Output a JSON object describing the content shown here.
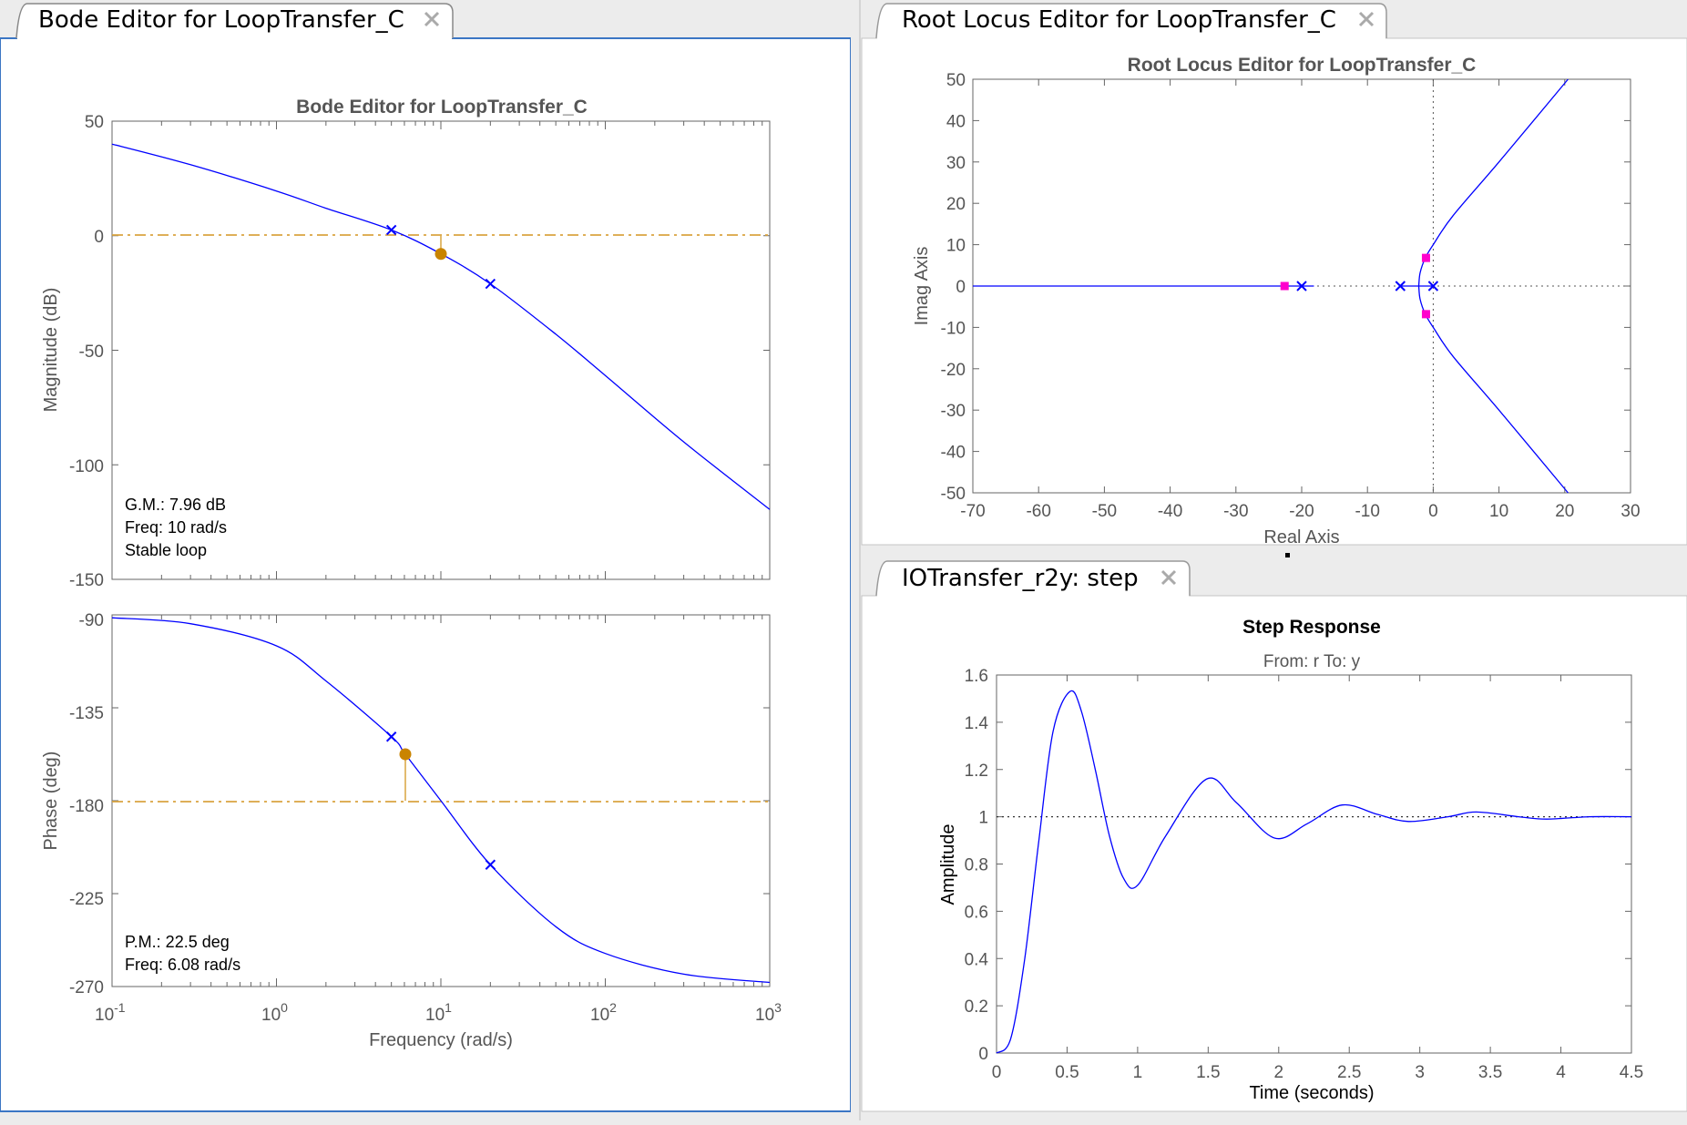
{
  "tabs": {
    "bode": "Bode Editor for LoopTransfer_C",
    "rlocus": "Root Locus Editor for LoopTransfer_C",
    "step": "IOTransfer_r2y: step"
  },
  "bode": {
    "title": "Bode Editor for LoopTransfer_C",
    "mag_ylabel": "Magnitude (dB)",
    "phase_ylabel": "Phase (deg)",
    "xlabel": "Frequency (rad/s)",
    "mag_yticks": [
      "50",
      "0",
      "-50",
      "-100",
      "-150"
    ],
    "phase_yticks": [
      "-90",
      "-135",
      "-180",
      "-225",
      "-270"
    ],
    "xticks": [
      {
        "base": "10",
        "exp": "-1"
      },
      {
        "base": "10",
        "exp": "0"
      },
      {
        "base": "10",
        "exp": "1"
      },
      {
        "base": "10",
        "exp": "2"
      },
      {
        "base": "10",
        "exp": "3"
      }
    ],
    "gm": {
      "line1": "G.M.: 7.96 dB",
      "line2": "Freq: 10 rad/s",
      "line3": "Stable loop"
    },
    "pm": {
      "line1": "P.M.: 22.5 deg",
      "line2": "Freq: 6.08 rad/s"
    }
  },
  "rlocus": {
    "title": "Root Locus Editor for LoopTransfer_C",
    "xlabel": "Real Axis",
    "ylabel": "Imag Axis",
    "xticks": [
      "-70",
      "-60",
      "-50",
      "-40",
      "-30",
      "-20",
      "-10",
      "0",
      "10",
      "20",
      "30"
    ],
    "yticks": [
      "50",
      "40",
      "30",
      "20",
      "10",
      "0",
      "-10",
      "-20",
      "-30",
      "-40",
      "-50"
    ]
  },
  "step": {
    "title": "Step Response",
    "subtitle": "From: r  To: y",
    "xlabel": "Time (seconds)",
    "ylabel": "Amplitude",
    "xticks": [
      "0",
      "0.5",
      "1",
      "1.5",
      "2",
      "2.5",
      "3",
      "3.5",
      "4",
      "4.5"
    ],
    "yticks": [
      "1.6",
      "1.4",
      "1.2",
      "1",
      "0.8",
      "0.6",
      "0.4",
      "0.2",
      "0"
    ]
  },
  "colors": {
    "curve": "#0000ff",
    "margin": "#d9a440",
    "marker_orange": "#c98400",
    "pole_marker": "#ff00cc",
    "tab_border": "#3b76c4"
  },
  "chart_data": [
    {
      "type": "line",
      "title": "Bode Editor for LoopTransfer_C",
      "xlabel": "Frequency (rad/s)",
      "ylabel": "Magnitude (dB)",
      "xscale": "log",
      "xlim": [
        0.1,
        1000
      ],
      "ylim": [
        -150,
        50
      ],
      "x": [
        0.1,
        0.3,
        1,
        2,
        5,
        10,
        20,
        50,
        100,
        300,
        1000
      ],
      "y": [
        40,
        31,
        19.5,
        12,
        2.5,
        -7.9,
        -21,
        -43,
        -61,
        -90,
        -119.5
      ],
      "compensator_poles": [
        5,
        20
      ],
      "gain_margin_db": 7.96,
      "gain_margin_freq": 10
    },
    {
      "type": "line",
      "xlabel": "Frequency (rad/s)",
      "ylabel": "Phase (deg)",
      "xscale": "log",
      "xlim": [
        0.1,
        1000
      ],
      "ylim": [
        -270,
        -90
      ],
      "x": [
        0.1,
        0.3,
        1,
        2,
        5,
        6.08,
        10,
        20,
        50,
        100,
        300,
        1000
      ],
      "y": [
        -91.4,
        -94.3,
        -105,
        -122,
        -149,
        -157.5,
        -180,
        -211,
        -241,
        -254,
        -264,
        -268
      ],
      "phase_margin_deg": 22.5,
      "phase_margin_freq": 6.08
    },
    {
      "type": "line",
      "title": "Root Locus Editor for LoopTransfer_C",
      "xlabel": "Real Axis",
      "ylabel": "Imag Axis",
      "xlim": [
        -70,
        30
      ],
      "ylim": [
        -50,
        50
      ],
      "open_loop_poles": [
        0,
        -5,
        -20
      ],
      "closed_loop_poles": [
        [
          -1.1,
          6.8
        ],
        [
          -1.1,
          -6.8
        ],
        [
          -22.6,
          0
        ]
      ],
      "branches": [
        {
          "real": [
            -20,
            -22.6,
            -70
          ],
          "imag": [
            0,
            0,
            0
          ]
        },
        {
          "real": [
            -2.2,
            -2.0,
            -1.2,
            0,
            3,
            10,
            20.5
          ],
          "imag": [
            0,
            3.2,
            6.8,
            10,
            17,
            30,
            50
          ]
        },
        {
          "real": [
            -2.2,
            -2.0,
            -1.2,
            0,
            3,
            10,
            20.5
          ],
          "imag": [
            0,
            -3.2,
            -6.8,
            -10,
            -17,
            -30,
            -50
          ]
        }
      ]
    },
    {
      "type": "line",
      "title": "Step Response",
      "subtitle": "From: r  To: y",
      "xlabel": "Time (seconds)",
      "ylabel": "Amplitude",
      "xlim": [
        0,
        4.5
      ],
      "ylim": [
        0,
        1.6
      ],
      "x": [
        0,
        0.1,
        0.2,
        0.3,
        0.4,
        0.52,
        0.6,
        0.7,
        0.8,
        0.9,
        1.0,
        1.2,
        1.49,
        1.7,
        1.97,
        2.2,
        2.45,
        2.7,
        2.92,
        3.2,
        3.4,
        3.7,
        3.9,
        4.2,
        4.5
      ],
      "y": [
        0,
        0.06,
        0.4,
        0.9,
        1.36,
        1.53,
        1.45,
        1.2,
        0.92,
        0.74,
        0.71,
        0.92,
        1.16,
        1.06,
        0.91,
        0.97,
        1.05,
        1.01,
        0.98,
        1.0,
        1.02,
        1.0,
        0.99,
        1.0,
        1.0
      ],
      "reference": 1
    }
  ]
}
